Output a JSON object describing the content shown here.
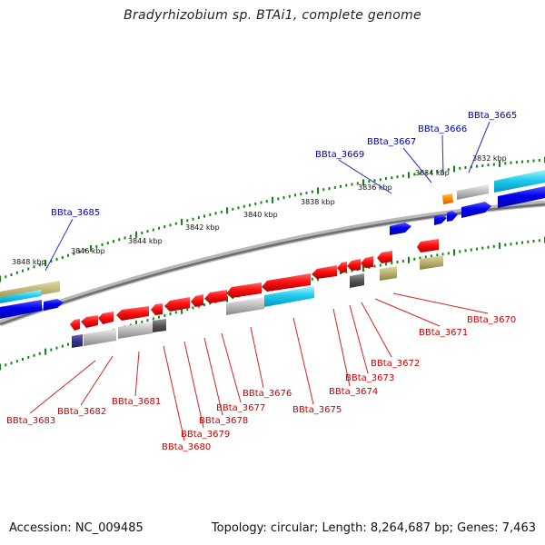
{
  "title": "Bradyrhizobium sp. BTAi1, complete genome",
  "footer": {
    "accession": "Accession: NC_009485",
    "summary": "Topology: circular; Length: 8,264,687 bp; Genes: 7,463"
  },
  "colors": {
    "top_label": "#0000aa",
    "bottom_label": "#cc0000",
    "tick": "#118811",
    "backbone": "#888888"
  },
  "kbp_labels": [
    "3848 kbp",
    "3846 kbp",
    "3844 kbp",
    "3842 kbp",
    "3840 kbp",
    "3838 kbp",
    "3836 kbp",
    "3834 kbp",
    "3832 kbp"
  ],
  "top_labels": [
    "BBta_3685",
    "BBta_3669",
    "BBta_3667",
    "BBta_3666",
    "BBta_3665"
  ],
  "bottom_labels": [
    "BBta_3683",
    "BBta_3682",
    "BBta_3681",
    "BBta_3680",
    "BBta_3679",
    "BBta_3678",
    "BBta_3677",
    "BBta_3676",
    "BBta_3675",
    "BBta_3674",
    "BBta_3673",
    "BBta_3672",
    "BBta_3671",
    "BBta_3670"
  ]
}
